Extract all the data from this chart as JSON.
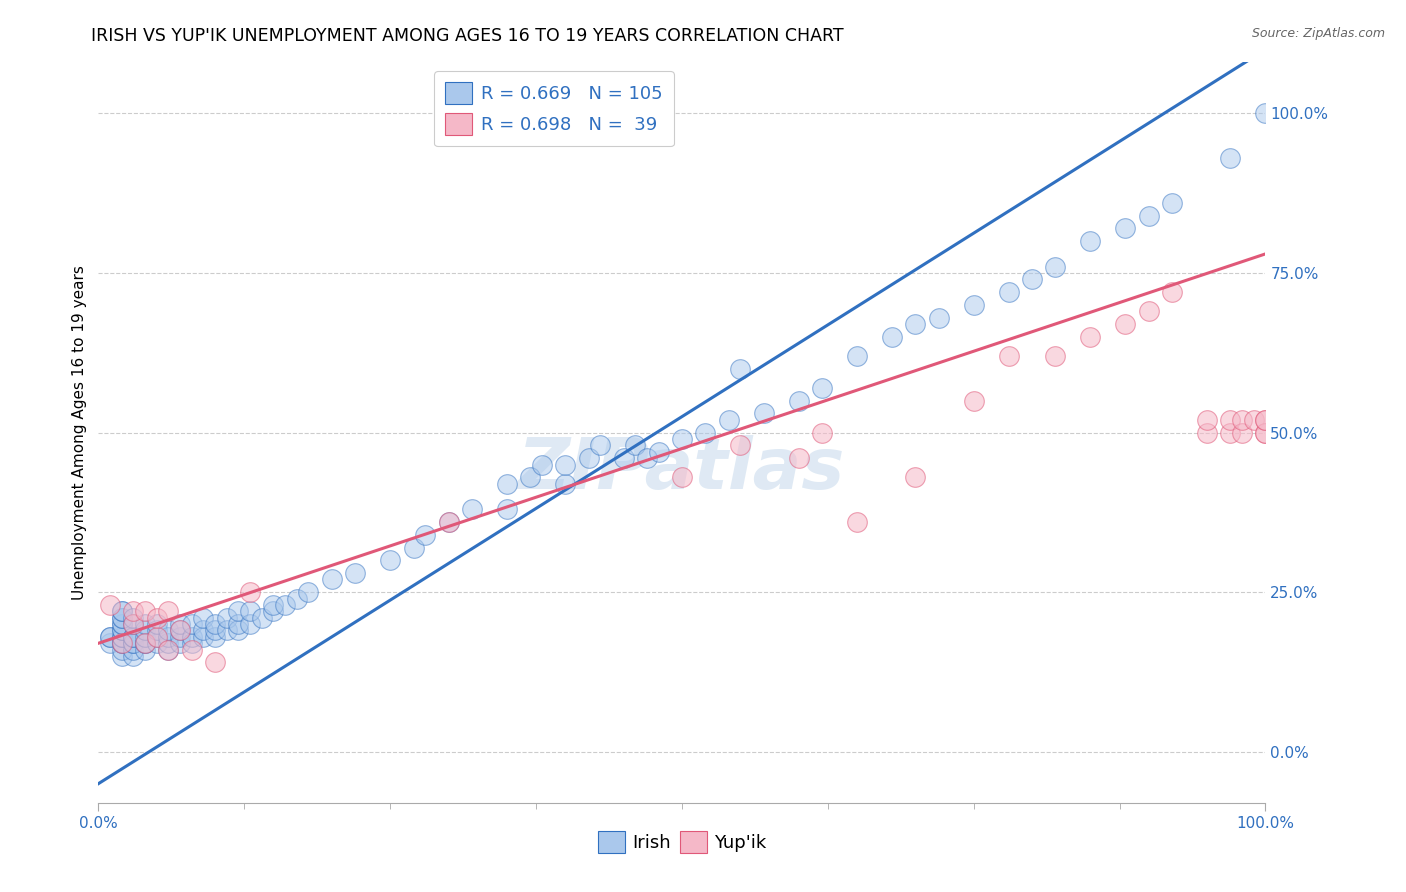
{
  "title": "IRISH VS YUP'IK UNEMPLOYMENT AMONG AGES 16 TO 19 YEARS CORRELATION CHART",
  "source": "Source: ZipAtlas.com",
  "ylabel": "Unemployment Among Ages 16 to 19 years",
  "xlim": [
    0.0,
    1.0
  ],
  "ylim": [
    -0.08,
    1.08
  ],
  "irish_R": 0.669,
  "irish_N": 105,
  "yupik_R": 0.698,
  "yupik_N": 39,
  "irish_color": "#aac8ec",
  "yupik_color": "#f5b8c8",
  "irish_line_color": "#3070c0",
  "yupik_line_color": "#e05878",
  "legend_text_color": "#3070c0",
  "title_fontsize": 12.5,
  "axis_label_fontsize": 11,
  "tick_fontsize": 11,
  "background_color": "#ffffff",
  "grid_color": "#cccccc",
  "watermark": "ZIPatlas",
  "ytick_labels": [
    "0.0%",
    "25.0%",
    "50.0%",
    "75.0%",
    "100.0%"
  ],
  "ytick_values": [
    0.0,
    0.25,
    0.5,
    0.75,
    1.0
  ],
  "xtick_labels": [
    "0.0%",
    "100.0%"
  ],
  "xtick_values": [
    0.0,
    1.0
  ],
  "irish_line_x": [
    0.0,
    1.0
  ],
  "irish_line_y": [
    -0.05,
    1.1
  ],
  "yupik_line_x": [
    0.0,
    1.0
  ],
  "yupik_line_y": [
    0.17,
    0.78
  ],
  "irish_x": [
    0.01,
    0.01,
    0.01,
    0.02,
    0.02,
    0.02,
    0.02,
    0.02,
    0.02,
    0.02,
    0.02,
    0.02,
    0.02,
    0.02,
    0.02,
    0.02,
    0.02,
    0.03,
    0.03,
    0.03,
    0.03,
    0.03,
    0.03,
    0.03,
    0.03,
    0.04,
    0.04,
    0.04,
    0.04,
    0.04,
    0.04,
    0.05,
    0.05,
    0.05,
    0.05,
    0.06,
    0.06,
    0.06,
    0.06,
    0.07,
    0.07,
    0.07,
    0.07,
    0.08,
    0.08,
    0.08,
    0.09,
    0.09,
    0.09,
    0.1,
    0.1,
    0.1,
    0.11,
    0.11,
    0.12,
    0.12,
    0.12,
    0.13,
    0.13,
    0.14,
    0.15,
    0.15,
    0.16,
    0.17,
    0.18,
    0.2,
    0.22,
    0.25,
    0.27,
    0.28,
    0.3,
    0.32,
    0.35,
    0.35,
    0.37,
    0.38,
    0.4,
    0.4,
    0.42,
    0.43,
    0.45,
    0.46,
    0.47,
    0.48,
    0.5,
    0.52,
    0.54,
    0.55,
    0.57,
    0.6,
    0.62,
    0.65,
    0.68,
    0.7,
    0.72,
    0.75,
    0.78,
    0.8,
    0.82,
    0.85,
    0.88,
    0.9,
    0.92,
    0.97,
    1.0
  ],
  "irish_y": [
    0.17,
    0.18,
    0.18,
    0.15,
    0.16,
    0.17,
    0.17,
    0.18,
    0.18,
    0.19,
    0.19,
    0.2,
    0.2,
    0.21,
    0.21,
    0.22,
    0.22,
    0.15,
    0.16,
    0.17,
    0.17,
    0.18,
    0.18,
    0.2,
    0.21,
    0.16,
    0.17,
    0.17,
    0.18,
    0.19,
    0.2,
    0.17,
    0.18,
    0.19,
    0.2,
    0.16,
    0.17,
    0.18,
    0.19,
    0.17,
    0.18,
    0.19,
    0.2,
    0.17,
    0.18,
    0.2,
    0.18,
    0.19,
    0.21,
    0.18,
    0.19,
    0.2,
    0.19,
    0.21,
    0.19,
    0.2,
    0.22,
    0.2,
    0.22,
    0.21,
    0.22,
    0.23,
    0.23,
    0.24,
    0.25,
    0.27,
    0.28,
    0.3,
    0.32,
    0.34,
    0.36,
    0.38,
    0.38,
    0.42,
    0.43,
    0.45,
    0.42,
    0.45,
    0.46,
    0.48,
    0.46,
    0.48,
    0.46,
    0.47,
    0.49,
    0.5,
    0.52,
    0.6,
    0.53,
    0.55,
    0.57,
    0.62,
    0.65,
    0.67,
    0.68,
    0.7,
    0.72,
    0.74,
    0.76,
    0.8,
    0.82,
    0.84,
    0.86,
    0.93,
    1.0
  ],
  "yupik_x": [
    0.01,
    0.02,
    0.03,
    0.03,
    0.04,
    0.04,
    0.05,
    0.05,
    0.06,
    0.06,
    0.07,
    0.08,
    0.1,
    0.13,
    0.3,
    0.5,
    0.55,
    0.6,
    0.62,
    0.65,
    0.7,
    0.75,
    0.78,
    0.82,
    0.85,
    0.88,
    0.9,
    0.92,
    0.95,
    0.95,
    0.97,
    0.97,
    0.98,
    0.98,
    0.99,
    1.0,
    1.0,
    1.0,
    1.0
  ],
  "yupik_y": [
    0.23,
    0.17,
    0.2,
    0.22,
    0.17,
    0.22,
    0.18,
    0.21,
    0.16,
    0.22,
    0.19,
    0.16,
    0.14,
    0.25,
    0.36,
    0.43,
    0.48,
    0.46,
    0.5,
    0.36,
    0.43,
    0.55,
    0.62,
    0.62,
    0.65,
    0.67,
    0.69,
    0.72,
    0.5,
    0.52,
    0.5,
    0.52,
    0.5,
    0.52,
    0.52,
    0.5,
    0.5,
    0.52,
    0.52
  ]
}
